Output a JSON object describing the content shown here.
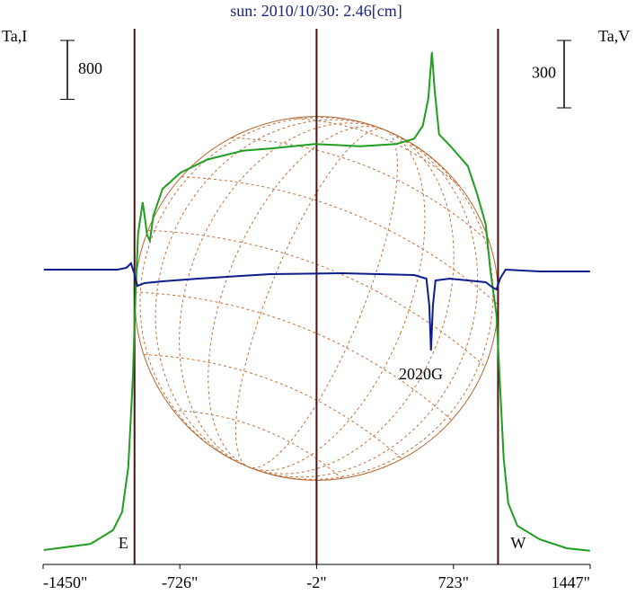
{
  "chart_data": {
    "type": "line",
    "title": "sun: 2010/10/30: 2.46[cm]",
    "y_label": "Ta,I",
    "y2_label": "Ta,V",
    "xlim": [
      -1450,
      1447
    ],
    "xticks": [
      {
        "value": -1450,
        "label": "-1450\""
      },
      {
        "value": -726,
        "label": "-726\""
      },
      {
        "value": -2,
        "label": "-2\""
      },
      {
        "value": 723,
        "label": "723\""
      },
      {
        "value": 1447,
        "label": "1447\""
      }
    ],
    "ylim": [
      0,
      7300
    ],
    "y2lim": [
      -1304,
      1088
    ],
    "scale_bars": {
      "y": 800,
      "y2": 300
    },
    "limb_lines": [
      -966,
      -2,
      959
    ],
    "limb_labels": [
      "E",
      "W"
    ],
    "annotation": "2020G",
    "series": [
      {
        "color": "#1f9e1f",
        "x": [
          -1446,
          -1199,
          -1080,
          -1032,
          -999,
          -975,
          -961,
          -947,
          -933,
          -923,
          -913,
          -899,
          -885,
          -866,
          -818,
          -723,
          -580,
          -390,
          -247,
          -10,
          228,
          419,
          514,
          561,
          590,
          609,
          623,
          647,
          704,
          799,
          847,
          894,
          918,
          951,
          970,
          989,
          1013,
          1061,
          1180,
          1323,
          1446
        ],
        "values": [
          195,
          280,
          465,
          710,
          1320,
          2540,
          3640,
          4490,
          4740,
          4920,
          4740,
          4470,
          4400,
          4740,
          5100,
          5320,
          5500,
          5620,
          5650,
          5710,
          5680,
          5710,
          5780,
          5960,
          6330,
          6960,
          6450,
          5840,
          5690,
          5410,
          5040,
          4620,
          4000,
          3390,
          2420,
          1440,
          830,
          525,
          340,
          220,
          185
        ]
      },
      {
        "color": "#0c1c8c",
        "axis": "y2",
        "x": [
          -1446,
          -1056,
          -1009,
          -985,
          -966,
          -951,
          -913,
          -818,
          -628,
          -247,
          133,
          514,
          580,
          595,
          604,
          614,
          628,
          704,
          894,
          932,
          951,
          970,
          999,
          1180,
          1446
        ],
        "values": [
          8,
          8,
          16,
          36,
          -12,
          -64,
          -52,
          -44,
          -32,
          -12,
          -8,
          -16,
          -32,
          -152,
          -352,
          -152,
          -40,
          -32,
          -48,
          -72,
          -80,
          -32,
          8,
          0,
          0
        ]
      }
    ]
  }
}
